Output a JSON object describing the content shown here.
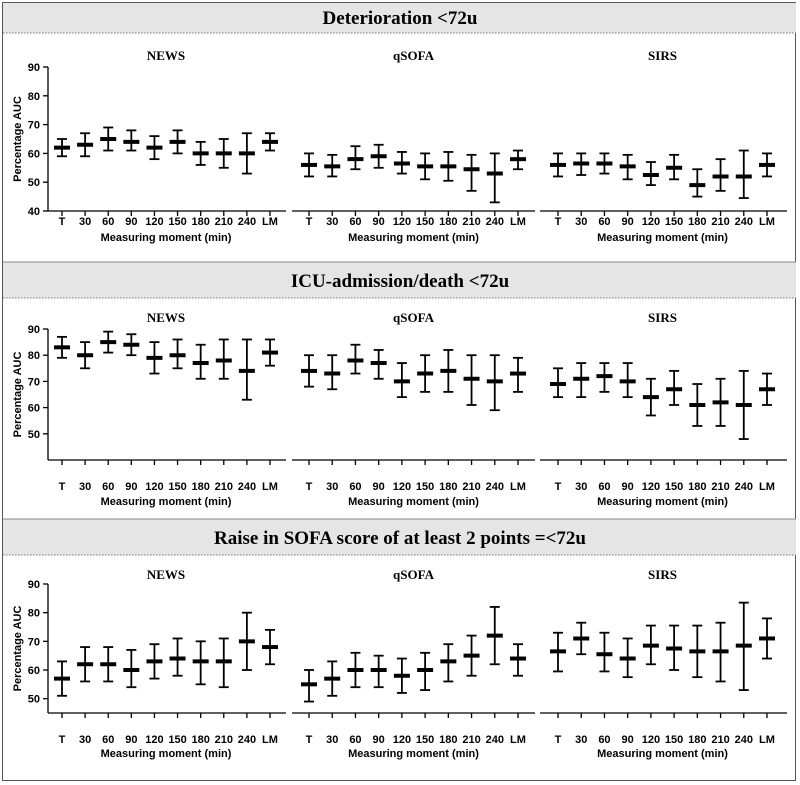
{
  "x_categories": [
    "T",
    "30",
    "60",
    "90",
    "120",
    "150",
    "180",
    "210",
    "240",
    "LM"
  ],
  "x_label": "Measuring moment (min)",
  "y_label": "Percentage AUC",
  "colors": {
    "band": "#e5e5e5",
    "ink": "#000000",
    "divider": "#777777"
  },
  "chart_data": [
    {
      "section": "Deterioration <72u",
      "ylim": [
        40,
        90
      ],
      "yticks": [
        40,
        50,
        60,
        70,
        80,
        90
      ],
      "panels": [
        {
          "title": "NEWS",
          "type": "errorbar",
          "mean": [
            62,
            63,
            65,
            64,
            62,
            64,
            60,
            60,
            60,
            64
          ],
          "lower": [
            59,
            59,
            61,
            61,
            58,
            60,
            56,
            55,
            53,
            61
          ],
          "upper": [
            65,
            67,
            69,
            68,
            66,
            68,
            64,
            65,
            67,
            67
          ]
        },
        {
          "title": "qSOFA",
          "type": "errorbar",
          "mean": [
            56,
            55.5,
            58,
            59,
            56.5,
            55.5,
            55.5,
            54.5,
            53,
            58
          ],
          "lower": [
            52,
            52,
            54.5,
            55,
            53,
            51,
            50.5,
            47,
            43,
            54.5
          ],
          "upper": [
            60,
            59.5,
            62.5,
            63,
            60.5,
            60,
            60.5,
            59.5,
            60,
            61
          ]
        },
        {
          "title": "SIRS",
          "type": "errorbar",
          "mean": [
            56,
            56.5,
            56.5,
            55.5,
            52.5,
            55,
            49,
            52,
            52,
            56
          ],
          "lower": [
            52,
            52.5,
            53,
            51,
            49,
            51,
            45,
            47,
            44.5,
            52
          ],
          "upper": [
            60,
            60,
            60,
            59.5,
            57,
            59.5,
            54.5,
            58,
            61,
            60
          ]
        }
      ]
    },
    {
      "section": "ICU-admission/death <72u",
      "ylim": [
        40,
        90
      ],
      "yticks": [
        50,
        60,
        70,
        80,
        90
      ],
      "panels": [
        {
          "title": "NEWS",
          "type": "errorbar",
          "mean": [
            83,
            80,
            85,
            84,
            79,
            80,
            77,
            78,
            74,
            81
          ],
          "lower": [
            79,
            75,
            81,
            80,
            73,
            75,
            71,
            71,
            63,
            76
          ],
          "upper": [
            87,
            85,
            89,
            88,
            85,
            86,
            84,
            86,
            86,
            86
          ]
        },
        {
          "title": "qSOFA",
          "type": "errorbar",
          "mean": [
            74,
            73,
            78,
            77,
            70,
            73,
            74,
            71,
            70,
            73
          ],
          "lower": [
            68,
            67,
            73,
            71,
            64,
            66,
            66,
            61,
            59,
            66
          ],
          "upper": [
            80,
            80,
            84,
            82,
            77,
            80,
            82,
            80,
            80,
            79
          ]
        },
        {
          "title": "SIRS",
          "type": "errorbar",
          "mean": [
            69,
            71,
            72,
            70,
            64,
            67,
            61,
            62,
            61,
            67
          ],
          "lower": [
            64,
            64,
            66,
            64,
            57,
            61,
            53,
            53,
            48,
            61
          ],
          "upper": [
            75,
            77,
            77,
            77,
            71,
            74,
            69,
            71,
            74,
            73
          ]
        }
      ]
    },
    {
      "section": "Raise in SOFA score of at least 2 points =<72u",
      "ylim": [
        45,
        90
      ],
      "yticks": [
        50,
        60,
        70,
        80,
        90
      ],
      "panels": [
        {
          "title": "NEWS",
          "type": "errorbar",
          "mean": [
            57,
            62,
            62,
            60,
            63,
            64,
            63,
            63,
            70,
            68
          ],
          "lower": [
            51,
            56,
            56,
            54,
            57,
            58,
            55,
            54,
            60,
            62
          ],
          "upper": [
            63,
            68,
            68,
            67,
            69,
            71,
            70,
            71,
            80,
            74
          ]
        },
        {
          "title": "qSOFA",
          "type": "errorbar",
          "mean": [
            55,
            57,
            60,
            60,
            58,
            60,
            63,
            65,
            72,
            64
          ],
          "lower": [
            49,
            51,
            54,
            54,
            52,
            53,
            56,
            58,
            62,
            58
          ],
          "upper": [
            60,
            63,
            66,
            65,
            64,
            66,
            69,
            72,
            82,
            69
          ]
        },
        {
          "title": "SIRS",
          "type": "errorbar",
          "mean": [
            66.5,
            71,
            65.5,
            64,
            68.5,
            67.5,
            66.5,
            66.5,
            68.5,
            71
          ],
          "lower": [
            59.5,
            65.5,
            59.5,
            57.5,
            62,
            60,
            57.5,
            56,
            53,
            64
          ],
          "upper": [
            73,
            76.5,
            73,
            71,
            75.5,
            75.5,
            75.5,
            76.5,
            83.5,
            78
          ]
        }
      ]
    }
  ]
}
